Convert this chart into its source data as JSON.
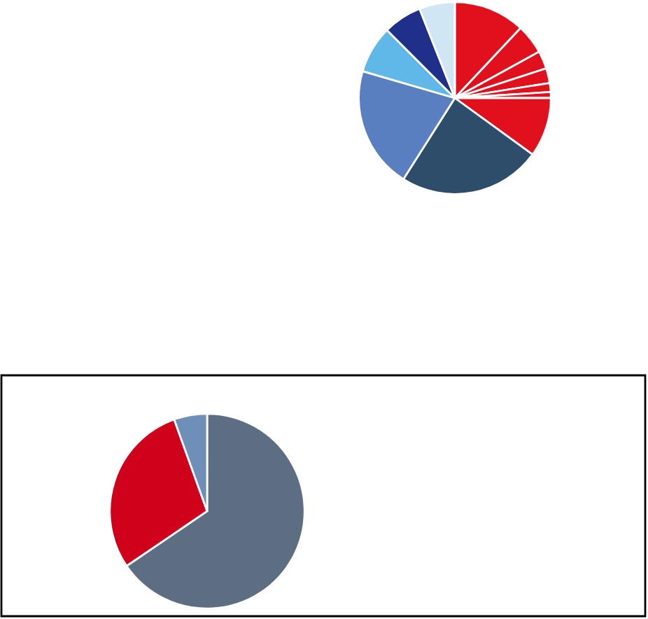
{
  "chart_data": [
    {
      "type": "pie",
      "categories": [
        null,
        null,
        null,
        null,
        null,
        null,
        null,
        null,
        null,
        null,
        null,
        null
      ],
      "values": [
        12,
        5,
        3,
        2.5,
        1.5,
        1,
        10,
        24,
        20.5,
        8,
        6.5,
        6
      ],
      "colors": [
        "#e0101c",
        "#e0101c",
        "#e0101c",
        "#e0101c",
        "#e0101c",
        "#e0101c",
        "#e0101c",
        "#2e4d6b",
        "#5a7fc0",
        "#5fb8e8",
        "#1f2f8a",
        "#d0e6f5"
      ]
    },
    {
      "type": "pie",
      "categories": [
        null,
        null,
        null
      ],
      "values": [
        65.5,
        29,
        5.5
      ],
      "colors": [
        "#5d6e82",
        "#d0021b",
        "#6d8fb8"
      ]
    }
  ]
}
